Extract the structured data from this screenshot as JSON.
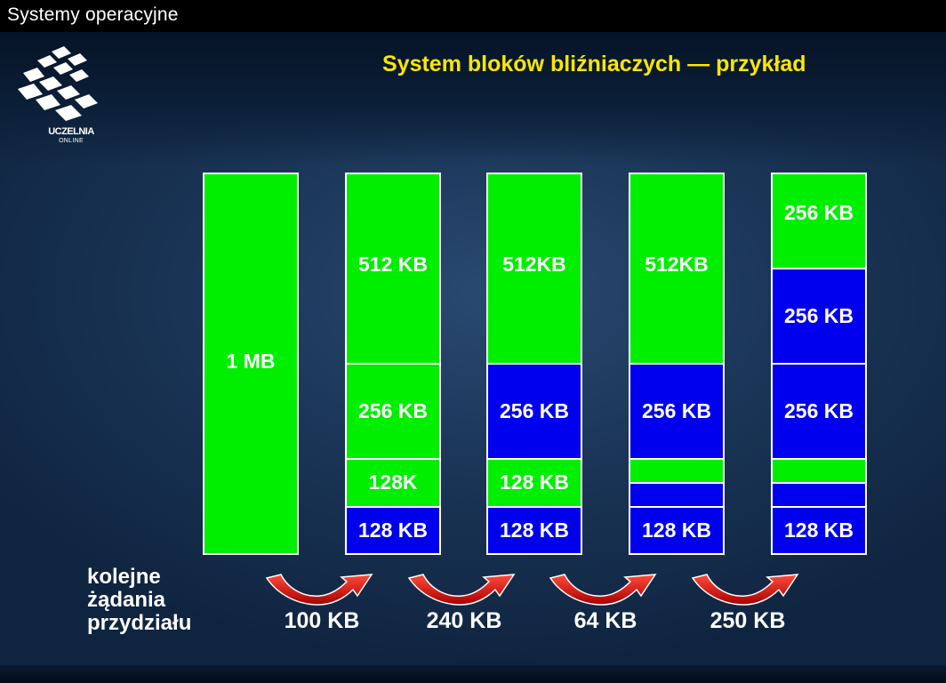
{
  "header": {
    "course_title": "Systemy operacyjne",
    "slide_title": "System bloków bliźniaczych — przykład"
  },
  "logo": {
    "line1": "UCZELNIA",
    "line2": "ONLINE"
  },
  "colors": {
    "free": "#00ee00",
    "allocated": "#0000ee",
    "title": "#ffe600"
  },
  "memory_states": [
    {
      "blocks": [
        {
          "size_kb": 1024,
          "label": "1 MB",
          "state": "free"
        }
      ]
    },
    {
      "blocks": [
        {
          "size_kb": 512,
          "label": "512 KB",
          "state": "free"
        },
        {
          "size_kb": 256,
          "label": "256 KB",
          "state": "free"
        },
        {
          "size_kb": 128,
          "label": "128K",
          "state": "free"
        },
        {
          "size_kb": 128,
          "label": "128 KB",
          "state": "allocated"
        }
      ]
    },
    {
      "blocks": [
        {
          "size_kb": 512,
          "label": "512KB",
          "state": "free"
        },
        {
          "size_kb": 256,
          "label": "256 KB",
          "state": "allocated"
        },
        {
          "size_kb": 128,
          "label": "128 KB",
          "state": "free"
        },
        {
          "size_kb": 128,
          "label": "128 KB",
          "state": "allocated"
        }
      ]
    },
    {
      "blocks": [
        {
          "size_kb": 512,
          "label": "512KB",
          "state": "free"
        },
        {
          "size_kb": 256,
          "label": "256 KB",
          "state": "allocated"
        },
        {
          "size_kb": 64,
          "label": "",
          "state": "free"
        },
        {
          "size_kb": 64,
          "label": "",
          "state": "allocated"
        },
        {
          "size_kb": 128,
          "label": "128 KB",
          "state": "allocated"
        }
      ]
    },
    {
      "blocks": [
        {
          "size_kb": 256,
          "label": "256 KB",
          "state": "free"
        },
        {
          "size_kb": 256,
          "label": "256 KB",
          "state": "allocated"
        },
        {
          "size_kb": 256,
          "label": "256 KB",
          "state": "allocated"
        },
        {
          "size_kb": 64,
          "label": "",
          "state": "free"
        },
        {
          "size_kb": 64,
          "label": "",
          "state": "allocated"
        },
        {
          "size_kb": 128,
          "label": "128 KB",
          "state": "allocated"
        }
      ]
    }
  ],
  "requests": {
    "label_lines": [
      "kolejne",
      "żądania",
      "przydziału"
    ],
    "amounts": [
      "100 KB",
      "240 KB",
      "64 KB",
      "250 KB"
    ]
  }
}
